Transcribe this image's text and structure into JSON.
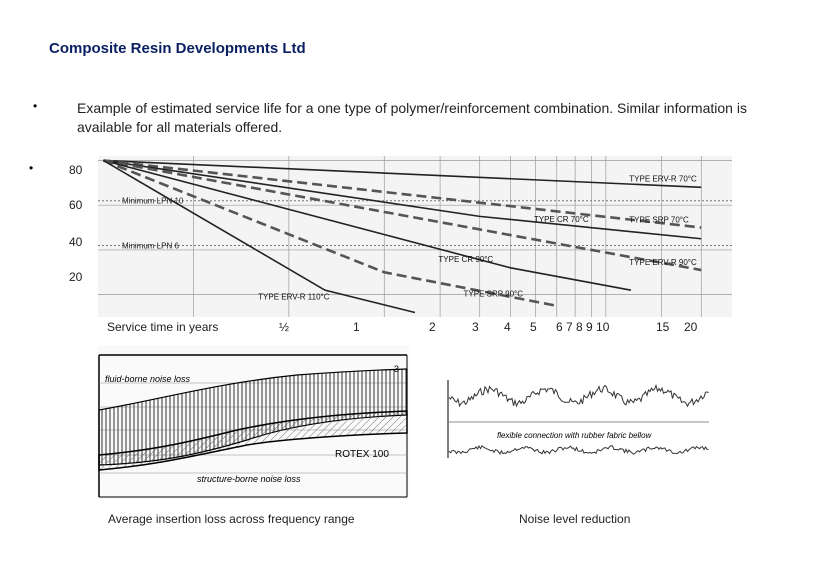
{
  "header": {
    "title": "Composite Resin Developments Ltd",
    "bullet_symbol": "•",
    "intro": "Example of estimated service life for a one type of polymer/reinforcement combination. Similar information is available for all materials offered."
  },
  "chart_data": [
    {
      "type": "line",
      "title": "",
      "xlabel": "Service time in years",
      "ylabel": "",
      "x_ticks": [
        "½",
        "1",
        "2",
        "3",
        "4",
        "5",
        "6",
        "7 8 9 10",
        "15",
        "20"
      ],
      "y_ticks": [
        80,
        60,
        40,
        20
      ],
      "ylim": [
        10,
        82
      ],
      "x_scale": "log",
      "xlim": [
        0.25,
        25
      ],
      "grid": true,
      "series": [
        {
          "name": "TYPE ERV-R 70°C",
          "style": "solid",
          "points": [
            [
              0.26,
              80
            ],
            [
              20,
              68
            ]
          ]
        },
        {
          "name": "TYPE SRP 70°C",
          "style": "dashed",
          "points": [
            [
              0.26,
              80
            ],
            [
              20,
              50
            ]
          ]
        },
        {
          "name": "TYPE CR 70°C",
          "style": "solid",
          "points": [
            [
              0.26,
              80
            ],
            [
              4,
              55
            ],
            [
              20,
              45
            ]
          ]
        },
        {
          "name": "TYPE ERV-R 90°C",
          "style": "dashed",
          "points": [
            [
              0.26,
              80
            ],
            [
              20,
              31
            ]
          ]
        },
        {
          "name": "TYPE CR 90°C",
          "style": "solid",
          "points": [
            [
              0.26,
              80
            ],
            [
              5,
              32
            ],
            [
              12,
              22
            ]
          ]
        },
        {
          "name": "TYPE SRP 90°C",
          "style": "dashed",
          "points": [
            [
              0.26,
              80
            ],
            [
              2,
              30
            ],
            [
              7,
              15
            ]
          ]
        },
        {
          "name": "TYPE ERV-R 110°C",
          "style": "solid",
          "points": [
            [
              0.26,
              80
            ],
            [
              1.3,
              22
            ],
            [
              2.5,
              12
            ]
          ]
        }
      ],
      "reference_lines": [
        {
          "label": "Minimum LPN 10",
          "value": 62
        },
        {
          "label": "Minimum LPN 6",
          "value": 42
        }
      ]
    },
    {
      "type": "area",
      "caption": "Average insertion loss across frequency range",
      "labels": [
        "fluid-borne noise loss",
        "structure-borne noise loss",
        "ROTEX 100",
        "3"
      ]
    },
    {
      "type": "line",
      "caption": "Noise level reduction",
      "labels": [
        "flexible connection with rubber fabric bellow"
      ]
    }
  ]
}
